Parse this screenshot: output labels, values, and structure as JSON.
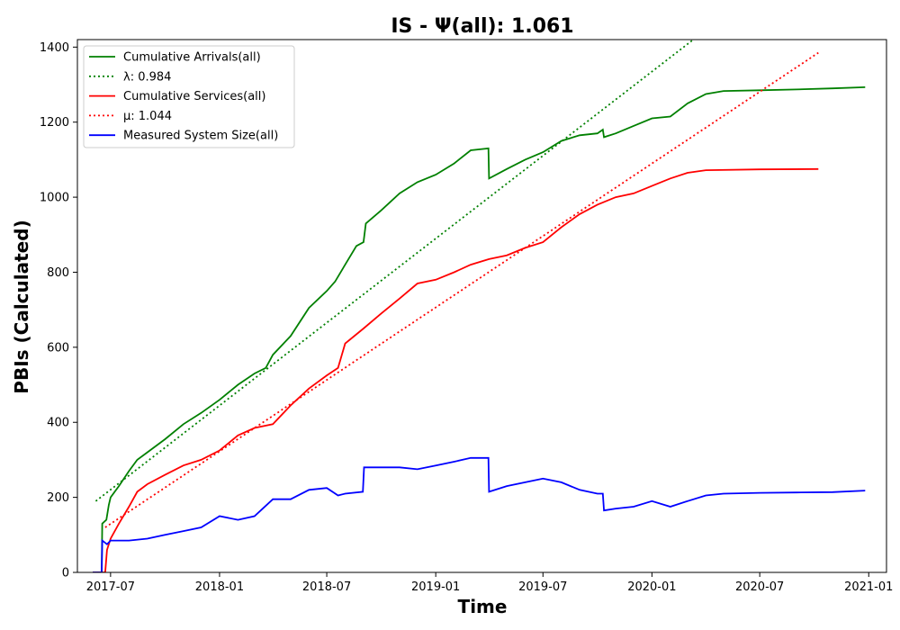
{
  "chart_data": {
    "type": "line",
    "title": "IS -  Ψ(all): 1.061",
    "xlabel": "Time",
    "ylabel": "PBIs (Calculated)",
    "x_ticks": [
      "2017-07",
      "2018-01",
      "2018-07",
      "2019-01",
      "2019-07",
      "2020-01",
      "2020-07",
      "2021-01"
    ],
    "y_ticks": [
      "0",
      "200",
      "400",
      "600",
      "800",
      "1000",
      "1200",
      "1400"
    ],
    "xlim": [
      "2017-05-06",
      "2021-01-31"
    ],
    "ylim": [
      0,
      1420
    ],
    "grid": false,
    "legend_position": "upper-left",
    "series": [
      {
        "name": "Cumulative Arrivals(all)",
        "style": "solid",
        "color": "#008000",
        "points": [
          [
            "2017-06-01",
            0
          ],
          [
            "2017-06-16",
            0
          ],
          [
            "2017-06-17",
            130
          ],
          [
            "2017-06-24",
            140
          ],
          [
            "2017-06-28",
            180
          ],
          [
            "2017-07-01",
            200
          ],
          [
            "2017-07-15",
            230
          ],
          [
            "2017-08-01",
            270
          ],
          [
            "2017-08-15",
            300
          ],
          [
            "2017-09-01",
            320
          ],
          [
            "2017-10-01",
            355
          ],
          [
            "2017-11-01",
            395
          ],
          [
            "2017-12-01",
            425
          ],
          [
            "2018-01-01",
            460
          ],
          [
            "2018-02-01",
            500
          ],
          [
            "2018-03-01",
            530
          ],
          [
            "2018-03-20",
            545
          ],
          [
            "2018-04-01",
            580
          ],
          [
            "2018-05-01",
            630
          ],
          [
            "2018-06-01",
            705
          ],
          [
            "2018-07-01",
            750
          ],
          [
            "2018-07-15",
            775
          ],
          [
            "2018-08-01",
            820
          ],
          [
            "2018-08-20",
            870
          ],
          [
            "2018-09-01",
            880
          ],
          [
            "2018-09-05",
            930
          ],
          [
            "2018-10-01",
            965
          ],
          [
            "2018-11-01",
            1010
          ],
          [
            "2018-12-01",
            1040
          ],
          [
            "2019-01-01",
            1060
          ],
          [
            "2019-02-01",
            1090
          ],
          [
            "2019-03-01",
            1125
          ],
          [
            "2019-03-31",
            1130
          ],
          [
            "2019-04-01",
            1050
          ],
          [
            "2019-05-01",
            1075
          ],
          [
            "2019-06-01",
            1100
          ],
          [
            "2019-07-01",
            1120
          ],
          [
            "2019-08-01",
            1150
          ],
          [
            "2019-09-01",
            1165
          ],
          [
            "2019-10-01",
            1170
          ],
          [
            "2019-10-10",
            1180
          ],
          [
            "2019-10-12",
            1160
          ],
          [
            "2019-11-01",
            1170
          ],
          [
            "2019-12-01",
            1190
          ],
          [
            "2020-01-01",
            1210
          ],
          [
            "2020-02-01",
            1215
          ],
          [
            "2020-03-01",
            1250
          ],
          [
            "2020-04-01",
            1275
          ],
          [
            "2020-05-01",
            1283
          ],
          [
            "2020-07-01",
            1285
          ],
          [
            "2020-09-01",
            1287
          ],
          [
            "2020-11-01",
            1290
          ],
          [
            "2020-12-26",
            1293
          ]
        ]
      },
      {
        "name": "λ: 0.984",
        "style": "dotted",
        "color": "#008000",
        "points": [
          [
            "2017-06-06",
            190
          ],
          [
            "2020-03-15",
            1425
          ]
        ]
      },
      {
        "name": "Cumulative Services(all)",
        "style": "solid",
        "color": "#ff0000",
        "points": [
          [
            "2017-06-01",
            0
          ],
          [
            "2017-06-22",
            0
          ],
          [
            "2017-06-25",
            60
          ],
          [
            "2017-07-01",
            90
          ],
          [
            "2017-07-15",
            130
          ],
          [
            "2017-08-01",
            175
          ],
          [
            "2017-08-15",
            215
          ],
          [
            "2017-09-01",
            235
          ],
          [
            "2017-10-01",
            260
          ],
          [
            "2017-11-01",
            285
          ],
          [
            "2017-12-01",
            300
          ],
          [
            "2018-01-01",
            325
          ],
          [
            "2018-02-01",
            365
          ],
          [
            "2018-03-01",
            385
          ],
          [
            "2018-04-01",
            395
          ],
          [
            "2018-05-01",
            445
          ],
          [
            "2018-06-01",
            490
          ],
          [
            "2018-07-01",
            525
          ],
          [
            "2018-07-20",
            545
          ],
          [
            "2018-08-01",
            610
          ],
          [
            "2018-09-01",
            650
          ],
          [
            "2018-10-01",
            690
          ],
          [
            "2018-11-01",
            730
          ],
          [
            "2018-12-01",
            770
          ],
          [
            "2019-01-01",
            780
          ],
          [
            "2019-02-01",
            800
          ],
          [
            "2019-03-01",
            820
          ],
          [
            "2019-04-01",
            835
          ],
          [
            "2019-05-01",
            845
          ],
          [
            "2019-06-01",
            865
          ],
          [
            "2019-07-01",
            880
          ],
          [
            "2019-08-01",
            920
          ],
          [
            "2019-09-01",
            955
          ],
          [
            "2019-10-01",
            980
          ],
          [
            "2019-11-01",
            1000
          ],
          [
            "2019-12-01",
            1010
          ],
          [
            "2020-01-01",
            1030
          ],
          [
            "2020-02-01",
            1050
          ],
          [
            "2020-03-01",
            1065
          ],
          [
            "2020-04-01",
            1072
          ],
          [
            "2020-07-01",
            1074
          ],
          [
            "2020-10-08",
            1075
          ]
        ]
      },
      {
        "name": "μ: 1.044",
        "style": "dotted",
        "color": "#ff0000",
        "points": [
          [
            "2017-06-22",
            120
          ],
          [
            "2020-10-08",
            1385
          ]
        ]
      },
      {
        "name": "Measured System Size(all)",
        "style": "solid",
        "color": "#0000ff",
        "points": [
          [
            "2017-06-01",
            0
          ],
          [
            "2017-06-16",
            0
          ],
          [
            "2017-06-17",
            85
          ],
          [
            "2017-06-25",
            75
          ],
          [
            "2017-07-01",
            85
          ],
          [
            "2017-08-01",
            85
          ],
          [
            "2017-09-01",
            90
          ],
          [
            "2017-10-01",
            100
          ],
          [
            "2017-11-01",
            110
          ],
          [
            "2017-12-01",
            120
          ],
          [
            "2018-01-01",
            150
          ],
          [
            "2018-02-01",
            140
          ],
          [
            "2018-03-01",
            150
          ],
          [
            "2018-04-01",
            195
          ],
          [
            "2018-05-01",
            195
          ],
          [
            "2018-06-01",
            220
          ],
          [
            "2018-07-01",
            225
          ],
          [
            "2018-07-20",
            205
          ],
          [
            "2018-08-01",
            210
          ],
          [
            "2018-08-31",
            215
          ],
          [
            "2018-09-02",
            280
          ],
          [
            "2018-10-01",
            280
          ],
          [
            "2018-11-01",
            280
          ],
          [
            "2018-12-01",
            275
          ],
          [
            "2019-01-01",
            285
          ],
          [
            "2019-02-01",
            295
          ],
          [
            "2019-03-01",
            305
          ],
          [
            "2019-03-31",
            305
          ],
          [
            "2019-04-01",
            215
          ],
          [
            "2019-05-01",
            230
          ],
          [
            "2019-06-01",
            240
          ],
          [
            "2019-07-01",
            250
          ],
          [
            "2019-08-01",
            240
          ],
          [
            "2019-09-01",
            220
          ],
          [
            "2019-10-01",
            210
          ],
          [
            "2019-10-10",
            210
          ],
          [
            "2019-10-12",
            165
          ],
          [
            "2019-11-01",
            170
          ],
          [
            "2019-12-01",
            175
          ],
          [
            "2020-01-01",
            190
          ],
          [
            "2020-02-01",
            175
          ],
          [
            "2020-03-01",
            190
          ],
          [
            "2020-04-01",
            205
          ],
          [
            "2020-05-01",
            210
          ],
          [
            "2020-07-01",
            212
          ],
          [
            "2020-09-01",
            213
          ],
          [
            "2020-11-01",
            214
          ],
          [
            "2020-12-26",
            218
          ]
        ]
      }
    ]
  }
}
